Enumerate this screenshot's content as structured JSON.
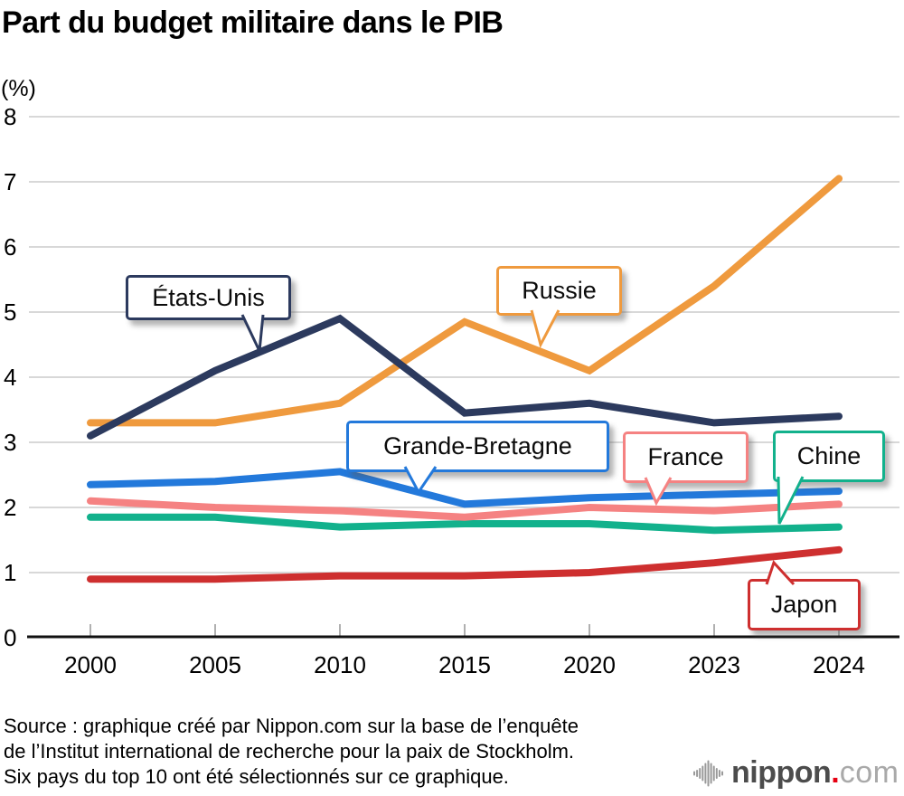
{
  "chart_data": {
    "type": "line",
    "title": "Part du budget militaire dans le PIB",
    "ylabel": "(%)",
    "x": [
      2000,
      2005,
      2010,
      2015,
      2020,
      2023,
      2024
    ],
    "x_spacing": "categorical-even",
    "y_ticks": [
      0,
      1,
      2,
      3,
      4,
      5,
      6,
      7,
      8
    ],
    "ylim": [
      0,
      8
    ],
    "grid": true,
    "legend_position": "inline-callouts",
    "series": [
      {
        "name": "États-Unis",
        "color": "#2c3a5e",
        "values": [
          3.1,
          4.1,
          4.9,
          3.45,
          3.6,
          3.3,
          3.4
        ]
      },
      {
        "name": "Russie",
        "color": "#ef9a3e",
        "values": [
          3.3,
          3.3,
          3.6,
          4.85,
          4.1,
          5.4,
          7.05
        ]
      },
      {
        "name": "Grande-Bretagne",
        "color": "#2379db",
        "values": [
          2.35,
          2.4,
          2.55,
          2.05,
          2.15,
          2.2,
          2.25
        ]
      },
      {
        "name": "France",
        "color": "#f58282",
        "values": [
          2.1,
          2.0,
          1.95,
          1.85,
          2.0,
          1.95,
          2.05
        ]
      },
      {
        "name": "Chine",
        "color": "#12b18c",
        "values": [
          1.85,
          1.85,
          1.7,
          1.75,
          1.75,
          1.65,
          1.7
        ]
      },
      {
        "name": "Japon",
        "color": "#ce2f2f",
        "values": [
          0.9,
          0.9,
          0.95,
          0.95,
          1.0,
          1.15,
          1.35
        ]
      }
    ]
  },
  "source_lines": [
    "Source : graphique créé par Nippon.com sur la base de l’enquête",
    "de l’Institut international de recherche pour la paix de Stockholm.",
    "Six pays du top 10 ont été sélectionnés sur ce graphique."
  ],
  "logo": {
    "brand": "nippon",
    "dot": ".",
    "tld": "com",
    "dot_color": "#e60012",
    "wave_color": "#999999"
  }
}
